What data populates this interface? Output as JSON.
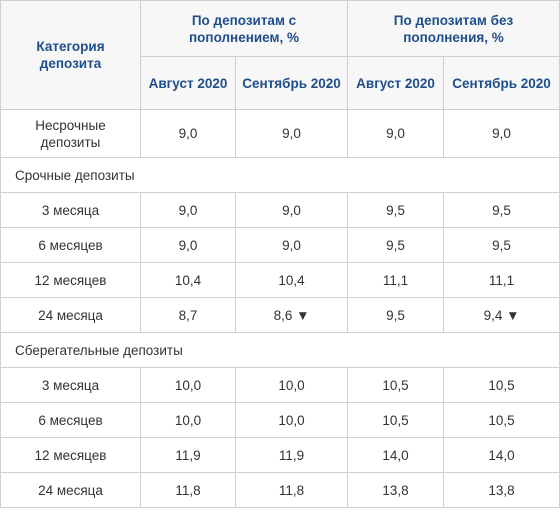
{
  "header": {
    "category_label": "Категория депозита",
    "group_with": "По депозитам с пополнением, %",
    "group_without": "По депозитам без пополнения, %",
    "month_aug": "Август 2020",
    "month_sep": "Сентябрь 2020"
  },
  "rows": [
    {
      "label": "Несрочные депозиты",
      "aug_with": "9,0",
      "sep_with": "9,0",
      "aug_without": "9,0",
      "sep_without": "9,0"
    }
  ],
  "section_term": "Срочные депозиты",
  "term": [
    {
      "label": "3 месяца",
      "aug_with": "9,0",
      "sep_with": "9,0",
      "aug_without": "9,5",
      "sep_without": "9,5"
    },
    {
      "label": "6 месяцев",
      "aug_with": "9,0",
      "sep_with": "9,0",
      "aug_without": "9,5",
      "sep_without": "9,5"
    },
    {
      "label": "12 месяцев",
      "aug_with": "10,4",
      "sep_with": "10,4",
      "aug_without": "11,1",
      "sep_without": "11,1"
    },
    {
      "label": "24 месяца",
      "aug_with": "8,7",
      "sep_with": "8,6 ▼",
      "aug_without": "9,5",
      "sep_without": "9,4 ▼"
    }
  ],
  "section_savings": "Сберегательные депозиты",
  "savings": [
    {
      "label": "3 месяца",
      "aug_with": "10,0",
      "sep_with": "10,0",
      "aug_without": "10,5",
      "sep_without": "10,5"
    },
    {
      "label": "6 месяцев",
      "aug_with": "10,0",
      "sep_with": "10,0",
      "aug_without": "10,5",
      "sep_without": "10,5"
    },
    {
      "label": "12 месяцев",
      "aug_with": "11,9",
      "sep_with": "11,9",
      "aug_without": "14,0",
      "sep_without": "14,0"
    },
    {
      "label": "24 месяца",
      "aug_with": "11,8",
      "sep_with": "11,8",
      "aug_without": "13,8",
      "sep_without": "13,8"
    }
  ]
}
